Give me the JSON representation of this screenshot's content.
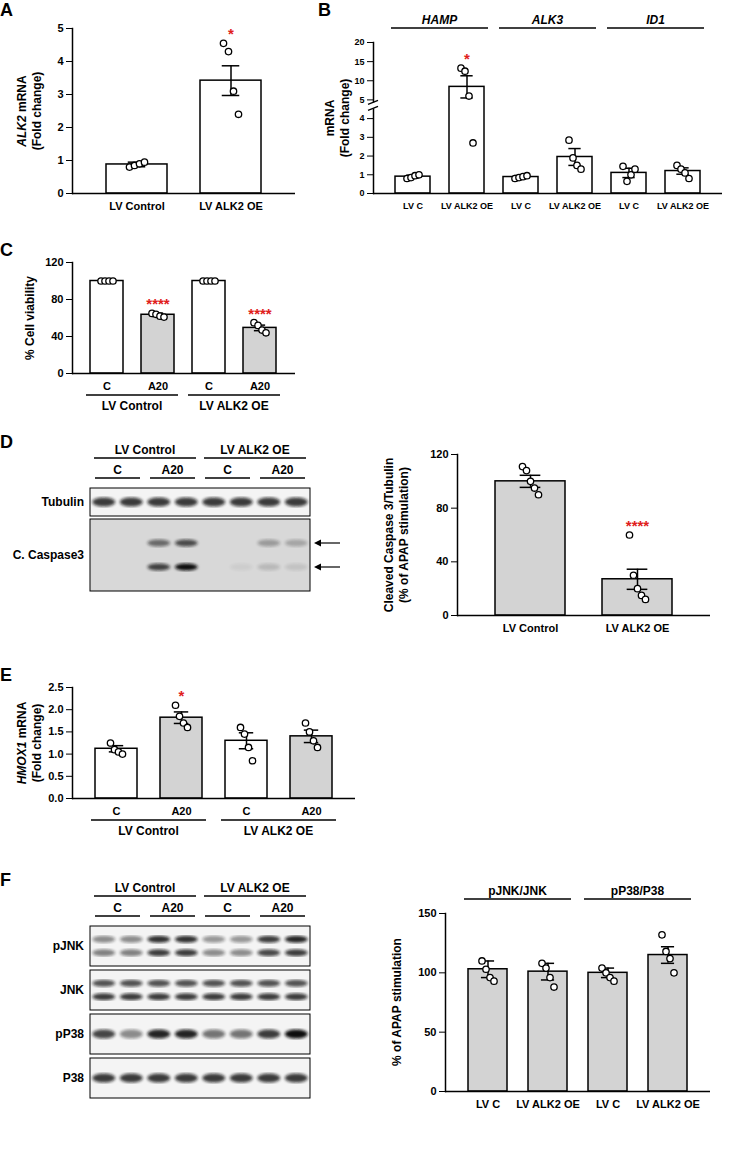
{
  "chart_data": [
    {
      "type": "bar",
      "title": "A",
      "ylabel": "ALK2 mRNA\n(Fold change)",
      "categories": [
        "LV Control",
        "LV ALK2 OE"
      ],
      "values": [
        0.88,
        3.42
      ],
      "errors": [
        0.07,
        0.45
      ],
      "points": [
        [
          0.8,
          0.85,
          0.9,
          0.95
        ],
        [
          4.55,
          4.3,
          3.1,
          2.4
        ]
      ],
      "colors": [
        "#ffffff",
        "#ffffff"
      ],
      "annotations": [
        null,
        "*"
      ],
      "ylim": [
        0,
        5
      ],
      "yticks": [
        0,
        1,
        2,
        3,
        4,
        5
      ]
    },
    {
      "type": "bar",
      "title": "B",
      "ylabel": "mRNA\n(Fold change)",
      "categories": [
        "LV C",
        "LV ALK2 OE",
        "LV C",
        "LV ALK2 OE",
        "LV C",
        "LV ALK2 OE"
      ],
      "groups": [
        "HAMP",
        "HAMP",
        "ALK3",
        "ALK3",
        "ID1",
        "ID1"
      ],
      "values": [
        0.9,
        8.4,
        0.88,
        1.95,
        1.1,
        1.2
      ],
      "errors": [
        0.08,
        2.9,
        0.08,
        0.45,
        0.25,
        0.17
      ],
      "points": [
        [
          0.8,
          0.85,
          0.95,
          1.0
        ],
        [
          13.3,
          12.5,
          6,
          2.7
        ],
        [
          0.8,
          0.85,
          0.9,
          0.95
        ],
        [
          2.85,
          1.9,
          1.5,
          1.3
        ],
        [
          1.45,
          0.65,
          1.0,
          1.3
        ],
        [
          1.5,
          1.3,
          1.1,
          0.8
        ]
      ],
      "colors": [
        "#ffffff",
        "#ffffff",
        "#ffffff",
        "#ffffff",
        "#ffffff",
        "#ffffff"
      ],
      "annotations": [
        null,
        "*",
        null,
        null,
        null,
        null
      ],
      "ylim": [
        0,
        20
      ],
      "yticks": [
        0,
        1,
        2,
        3,
        4,
        5,
        10,
        15,
        20
      ]
    },
    {
      "type": "bar",
      "title": "C",
      "ylabel": "% Cell viability",
      "categories": [
        "C",
        "A20",
        "C",
        "A20"
      ],
      "groups": [
        "LV Control",
        "LV Control",
        "LV ALK2 OE",
        "LV ALK2 OE"
      ],
      "values": [
        100,
        63.5,
        100,
        49.3
      ],
      "errors": [
        0,
        1.8,
        0,
        3
      ],
      "points": [
        [
          100,
          100,
          100,
          100
        ],
        [
          65,
          64,
          62,
          61
        ],
        [
          100,
          100,
          100,
          100
        ],
        [
          55,
          52,
          47,
          44
        ]
      ],
      "colors": [
        "#ffffff",
        "#d3d3d3",
        "#ffffff",
        "#d3d3d3"
      ],
      "annotations": [
        null,
        "****",
        null,
        "****"
      ],
      "ylim": [
        0,
        120
      ],
      "yticks": [
        0,
        40,
        80,
        120
      ]
    },
    {
      "type": "bar",
      "ylabel": "Cleaved Caspase 3/Tubulin\n(% of APAP stimulation)",
      "categories": [
        "LV Control",
        "LV ALK2 OE"
      ],
      "values": [
        100,
        27
      ],
      "errors": [
        4.5,
        7.5
      ],
      "points": [
        [
          111,
          108,
          100,
          95,
          90
        ],
        [
          60,
          30,
          20,
          15,
          12
        ]
      ],
      "colors": [
        "#d3d3d3",
        "#d3d3d3"
      ],
      "annotations": [
        null,
        "****"
      ],
      "ylim": [
        0,
        120
      ],
      "yticks": [
        0,
        40,
        80,
        120
      ]
    },
    {
      "type": "bar",
      "title": "E",
      "ylabel": "HMOX1 mRNA\n(Fold change)",
      "categories": [
        "C",
        "A20",
        "C",
        "A20"
      ],
      "groups": [
        "LV Control",
        "LV Control",
        "LV ALK2 OE",
        "LV ALK2 OE"
      ],
      "values": [
        1.12,
        1.82,
        1.3,
        1.4
      ],
      "errors": [
        0.07,
        0.13,
        0.18,
        0.14
      ],
      "points": [
        [
          1.25,
          1.1,
          1.05,
          1.0
        ],
        [
          2.1,
          1.85,
          1.7,
          1.6
        ],
        [
          1.6,
          1.45,
          1.15,
          0.85
        ],
        [
          1.7,
          1.5,
          1.3,
          1.15
        ]
      ],
      "colors": [
        "#ffffff",
        "#d3d3d3",
        "#ffffff",
        "#d3d3d3"
      ],
      "annotations": [
        null,
        "*",
        null,
        null
      ],
      "ylim": [
        0,
        2.5
      ],
      "yticks": [
        {
          "value": 0,
          "label": "0.0"
        },
        {
          "value": 0.5,
          "label": "0.5"
        },
        {
          "value": 1,
          "label": "1.0"
        },
        {
          "value": 1.5,
          "label": "1.5"
        },
        {
          "value": 2,
          "label": "2.0"
        },
        {
          "value": 2.5,
          "label": "2.5"
        }
      ]
    },
    {
      "type": "bar",
      "ylabel": "% of APAP stimulation",
      "categories": [
        "LV C",
        "LV ALK2 OE",
        "LV C",
        "LV ALK2 OE"
      ],
      "groups": [
        "pJNK/JNK",
        "pJNK/JNK",
        "pP38/P38",
        "pP38/P38"
      ],
      "values": [
        103,
        101,
        100,
        115
      ],
      "errors": [
        7,
        7,
        4,
        7
      ],
      "points": [
        [
          110,
          103,
          96,
          93
        ],
        [
          108,
          104,
          96,
          88
        ],
        [
          104,
          100,
          96,
          93
        ],
        [
          132,
          118,
          112,
          100
        ]
      ],
      "colors": [
        "#d3d3d3",
        "#d3d3d3",
        "#d3d3d3",
        "#d3d3d3"
      ],
      "ylim": [
        0,
        150
      ],
      "yticks": [
        0,
        50,
        100,
        150
      ]
    }
  ],
  "blots": [
    {
      "panel": "D",
      "groups": [
        "LV Control",
        "LV ALK2 OE"
      ],
      "lanes": [
        "C",
        "A20",
        "C",
        "A20"
      ],
      "rows": [
        "Tubulin",
        "C. Caspase3"
      ]
    },
    {
      "panel": "F",
      "groups": [
        "LV Control",
        "LV ALK2 OE"
      ],
      "lanes": [
        "C",
        "A20",
        "C",
        "A20"
      ],
      "rows": [
        "pJNK",
        "JNK",
        "pP38",
        "P38"
      ]
    }
  ]
}
